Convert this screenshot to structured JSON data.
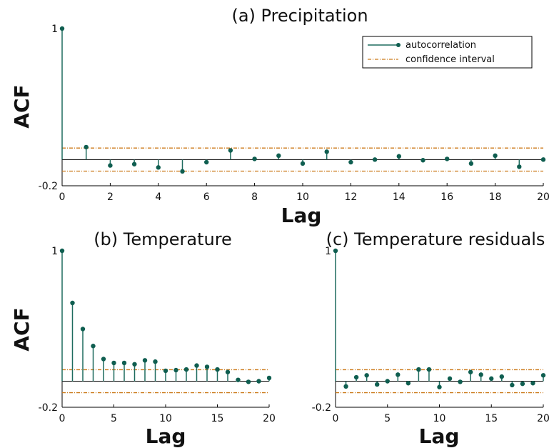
{
  "colors": {
    "stem": "#1e6b5e",
    "marker": "#0f5e50",
    "ci": "#cc7a1a",
    "axis": "#000000"
  },
  "legend": {
    "autocorrelation": "autocorrelation",
    "confidence": "confidence interval"
  },
  "chart_data": [
    {
      "type": "stem",
      "title": "(a) Precipitation",
      "xlabel": "Lag",
      "ylabel": "ACF",
      "xlim": [
        0,
        20
      ],
      "ylim": [
        -0.2,
        1
      ],
      "xticks": [
        0,
        2,
        4,
        6,
        8,
        10,
        12,
        14,
        16,
        18,
        20
      ],
      "yticks": [
        -0.2,
        1
      ],
      "ytick_labels": [
        "-0.2",
        "1"
      ],
      "confidence_interval": [
        -0.088,
        0.088
      ],
      "legend_position": "top-right",
      "series": [
        {
          "name": "autocorrelation",
          "x": [
            0,
            1,
            2,
            3,
            4,
            5,
            6,
            7,
            8,
            9,
            10,
            11,
            12,
            13,
            14,
            15,
            16,
            17,
            18,
            19,
            20
          ],
          "values": [
            1.0,
            0.095,
            -0.045,
            -0.035,
            -0.06,
            -0.09,
            -0.02,
            0.07,
            0.005,
            0.03,
            -0.03,
            0.06,
            -0.02,
            0.0,
            0.025,
            -0.005,
            0.005,
            -0.03,
            0.03,
            -0.055,
            0.0
          ]
        }
      ]
    },
    {
      "type": "stem",
      "title": "(b) Temperature",
      "xlabel": "Lag",
      "ylabel": "ACF",
      "xlim": [
        0,
        20
      ],
      "ylim": [
        -0.2,
        1
      ],
      "xticks": [
        0,
        5,
        10,
        15,
        20
      ],
      "yticks": [
        -0.2,
        1
      ],
      "ytick_labels": [
        "-0.2",
        "1"
      ],
      "confidence_interval": [
        -0.088,
        0.088
      ],
      "series": [
        {
          "name": "autocorrelation",
          "x": [
            0,
            1,
            2,
            3,
            4,
            5,
            6,
            7,
            8,
            9,
            10,
            11,
            12,
            13,
            14,
            15,
            16,
            17,
            18,
            19,
            20
          ],
          "values": [
            1.0,
            0.6,
            0.4,
            0.27,
            0.17,
            0.14,
            0.14,
            0.13,
            0.16,
            0.15,
            0.08,
            0.085,
            0.09,
            0.12,
            0.11,
            0.09,
            0.07,
            0.01,
            -0.005,
            0.0,
            0.025
          ]
        }
      ]
    },
    {
      "type": "stem",
      "title": "(c) Temperature residuals",
      "xlabel": "Lag",
      "xlim": [
        0,
        20
      ],
      "ylim": [
        -0.2,
        1
      ],
      "xticks": [
        0,
        5,
        10,
        15,
        20
      ],
      "yticks": [
        -0.2,
        1
      ],
      "ytick_labels": [
        "-0.2",
        "1"
      ],
      "confidence_interval": [
        -0.088,
        0.088
      ],
      "series": [
        {
          "name": "autocorrelation",
          "x": [
            0,
            1,
            2,
            3,
            4,
            5,
            6,
            7,
            8,
            9,
            10,
            11,
            12,
            13,
            14,
            15,
            16,
            17,
            18,
            19,
            20
          ],
          "values": [
            1.0,
            -0.04,
            0.03,
            0.045,
            -0.025,
            0.0,
            0.05,
            -0.015,
            0.09,
            0.09,
            -0.045,
            0.02,
            -0.005,
            0.07,
            0.05,
            0.02,
            0.035,
            -0.03,
            -0.02,
            -0.015,
            0.045
          ]
        }
      ]
    }
  ]
}
